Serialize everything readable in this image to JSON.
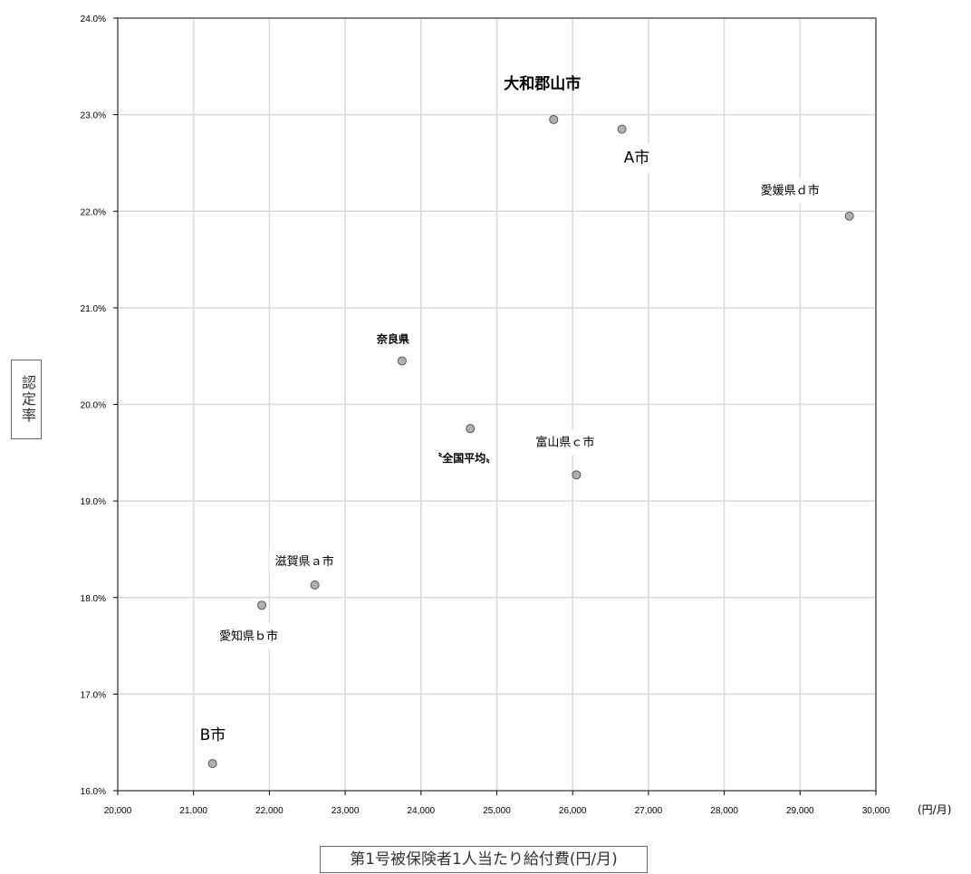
{
  "chart_data": {
    "type": "scatter",
    "xlabel": "第1号被保険者1人当たり給付費(円/月)",
    "ylabel": "認定率",
    "x_unit": "(円/月)",
    "xlim": [
      20000,
      30000
    ],
    "ylim": [
      16.0,
      24.0
    ],
    "x_ticks": [
      "20,000",
      "21,000",
      "22,000",
      "23,000",
      "24,000",
      "25,000",
      "26,000",
      "27,000",
      "28,000",
      "29,000",
      "30,000"
    ],
    "y_ticks": [
      "16.0%",
      "17.0%",
      "18.0%",
      "19.0%",
      "20.0%",
      "21.0%",
      "22.0%",
      "23.0%",
      "24.0%"
    ],
    "grid": true,
    "points": [
      {
        "label": "大和郡山市",
        "x": 25750,
        "y": 22.95
      },
      {
        "label": "A市",
        "x": 26650,
        "y": 22.85
      },
      {
        "label": "愛媛県ｄ市",
        "x": 29650,
        "y": 21.95
      },
      {
        "label": "奈良県",
        "x": 23750,
        "y": 20.45
      },
      {
        "label": "〝全国平均〟",
        "x": 24650,
        "y": 19.75
      },
      {
        "label": "富山県ｃ市",
        "x": 26050,
        "y": 19.27
      },
      {
        "label": "滋賀県ａ市",
        "x": 22600,
        "y": 18.13
      },
      {
        "label": "愛知県ｂ市",
        "x": 21900,
        "y": 17.92
      },
      {
        "label": "B市",
        "x": 21250,
        "y": 16.28
      }
    ],
    "marker_color": "#b0b0b0",
    "marker_edge_color": "#555555",
    "grid_color": "#d9d9d9"
  }
}
